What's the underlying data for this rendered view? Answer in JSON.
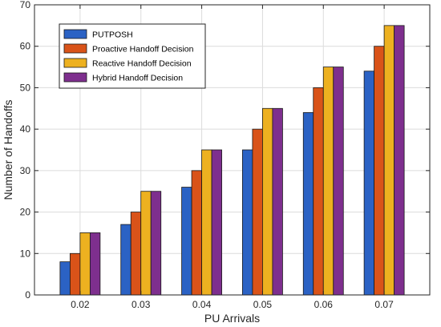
{
  "chart_data": {
    "type": "bar",
    "title": "",
    "xlabel": "PU Arrivals",
    "ylabel": "Number of Handoffs",
    "categories": [
      "0.02",
      "0.03",
      "0.04",
      "0.05",
      "0.06",
      "0.07"
    ],
    "series": [
      {
        "name": "PUTPOSH",
        "color": "#2b62c4",
        "values": [
          8,
          17,
          26,
          35,
          44,
          54
        ]
      },
      {
        "name": "Proactive Handoff Decision",
        "color": "#d95319",
        "values": [
          10,
          20,
          30,
          40,
          50,
          60
        ]
      },
      {
        "name": "Reactive Handoff Decision",
        "color": "#edb120",
        "values": [
          15,
          25,
          35,
          45,
          55,
          65
        ]
      },
      {
        "name": "Hybrid Handoff Decision",
        "color": "#7e2f8e",
        "values": [
          15,
          25,
          35,
          45,
          55,
          65
        ]
      }
    ],
    "ylim": [
      0,
      70
    ],
    "yticks": [
      0,
      10,
      20,
      30,
      40,
      50,
      60,
      70
    ],
    "grid": true,
    "legend_position": "top-left"
  }
}
